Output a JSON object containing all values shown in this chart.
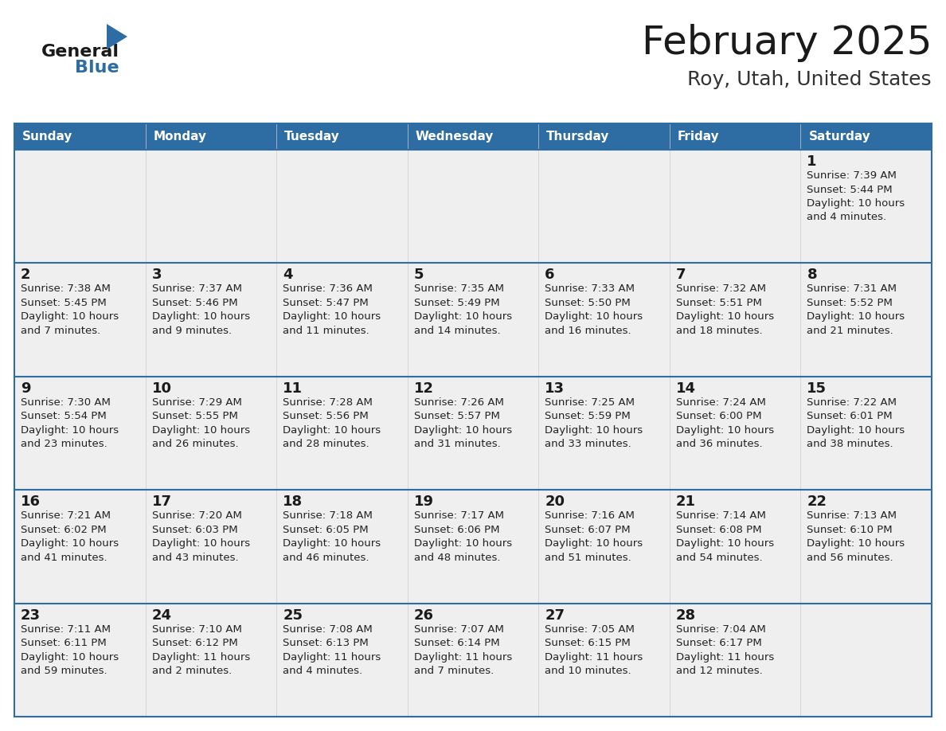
{
  "title": "February 2025",
  "subtitle": "Roy, Utah, United States",
  "header_bg": "#2E6DA4",
  "header_text": "#FFFFFF",
  "cell_bg": "#EFEFEF",
  "border_color": "#2E6DA4",
  "cell_border_color": "#CCCCCC",
  "day_headers": [
    "Sunday",
    "Monday",
    "Tuesday",
    "Wednesday",
    "Thursday",
    "Friday",
    "Saturday"
  ],
  "title_color": "#1a1a1a",
  "subtitle_color": "#333333",
  "day_num_color": "#1a1a1a",
  "info_text_color": "#222222",
  "logo_general_color": "#1a1a1a",
  "logo_blue_color": "#2E6DA4",
  "weeks": [
    [
      {
        "day": null,
        "info": null
      },
      {
        "day": null,
        "info": null
      },
      {
        "day": null,
        "info": null
      },
      {
        "day": null,
        "info": null
      },
      {
        "day": null,
        "info": null
      },
      {
        "day": null,
        "info": null
      },
      {
        "day": 1,
        "info": "Sunrise: 7:39 AM\nSunset: 5:44 PM\nDaylight: 10 hours\nand 4 minutes."
      }
    ],
    [
      {
        "day": 2,
        "info": "Sunrise: 7:38 AM\nSunset: 5:45 PM\nDaylight: 10 hours\nand 7 minutes."
      },
      {
        "day": 3,
        "info": "Sunrise: 7:37 AM\nSunset: 5:46 PM\nDaylight: 10 hours\nand 9 minutes."
      },
      {
        "day": 4,
        "info": "Sunrise: 7:36 AM\nSunset: 5:47 PM\nDaylight: 10 hours\nand 11 minutes."
      },
      {
        "day": 5,
        "info": "Sunrise: 7:35 AM\nSunset: 5:49 PM\nDaylight: 10 hours\nand 14 minutes."
      },
      {
        "day": 6,
        "info": "Sunrise: 7:33 AM\nSunset: 5:50 PM\nDaylight: 10 hours\nand 16 minutes."
      },
      {
        "day": 7,
        "info": "Sunrise: 7:32 AM\nSunset: 5:51 PM\nDaylight: 10 hours\nand 18 minutes."
      },
      {
        "day": 8,
        "info": "Sunrise: 7:31 AM\nSunset: 5:52 PM\nDaylight: 10 hours\nand 21 minutes."
      }
    ],
    [
      {
        "day": 9,
        "info": "Sunrise: 7:30 AM\nSunset: 5:54 PM\nDaylight: 10 hours\nand 23 minutes."
      },
      {
        "day": 10,
        "info": "Sunrise: 7:29 AM\nSunset: 5:55 PM\nDaylight: 10 hours\nand 26 minutes."
      },
      {
        "day": 11,
        "info": "Sunrise: 7:28 AM\nSunset: 5:56 PM\nDaylight: 10 hours\nand 28 minutes."
      },
      {
        "day": 12,
        "info": "Sunrise: 7:26 AM\nSunset: 5:57 PM\nDaylight: 10 hours\nand 31 minutes."
      },
      {
        "day": 13,
        "info": "Sunrise: 7:25 AM\nSunset: 5:59 PM\nDaylight: 10 hours\nand 33 minutes."
      },
      {
        "day": 14,
        "info": "Sunrise: 7:24 AM\nSunset: 6:00 PM\nDaylight: 10 hours\nand 36 minutes."
      },
      {
        "day": 15,
        "info": "Sunrise: 7:22 AM\nSunset: 6:01 PM\nDaylight: 10 hours\nand 38 minutes."
      }
    ],
    [
      {
        "day": 16,
        "info": "Sunrise: 7:21 AM\nSunset: 6:02 PM\nDaylight: 10 hours\nand 41 minutes."
      },
      {
        "day": 17,
        "info": "Sunrise: 7:20 AM\nSunset: 6:03 PM\nDaylight: 10 hours\nand 43 minutes."
      },
      {
        "day": 18,
        "info": "Sunrise: 7:18 AM\nSunset: 6:05 PM\nDaylight: 10 hours\nand 46 minutes."
      },
      {
        "day": 19,
        "info": "Sunrise: 7:17 AM\nSunset: 6:06 PM\nDaylight: 10 hours\nand 48 minutes."
      },
      {
        "day": 20,
        "info": "Sunrise: 7:16 AM\nSunset: 6:07 PM\nDaylight: 10 hours\nand 51 minutes."
      },
      {
        "day": 21,
        "info": "Sunrise: 7:14 AM\nSunset: 6:08 PM\nDaylight: 10 hours\nand 54 minutes."
      },
      {
        "day": 22,
        "info": "Sunrise: 7:13 AM\nSunset: 6:10 PM\nDaylight: 10 hours\nand 56 minutes."
      }
    ],
    [
      {
        "day": 23,
        "info": "Sunrise: 7:11 AM\nSunset: 6:11 PM\nDaylight: 10 hours\nand 59 minutes."
      },
      {
        "day": 24,
        "info": "Sunrise: 7:10 AM\nSunset: 6:12 PM\nDaylight: 11 hours\nand 2 minutes."
      },
      {
        "day": 25,
        "info": "Sunrise: 7:08 AM\nSunset: 6:13 PM\nDaylight: 11 hours\nand 4 minutes."
      },
      {
        "day": 26,
        "info": "Sunrise: 7:07 AM\nSunset: 6:14 PM\nDaylight: 11 hours\nand 7 minutes."
      },
      {
        "day": 27,
        "info": "Sunrise: 7:05 AM\nSunset: 6:15 PM\nDaylight: 11 hours\nand 10 minutes."
      },
      {
        "day": 28,
        "info": "Sunrise: 7:04 AM\nSunset: 6:17 PM\nDaylight: 11 hours\nand 12 minutes."
      },
      {
        "day": null,
        "info": null
      }
    ]
  ]
}
